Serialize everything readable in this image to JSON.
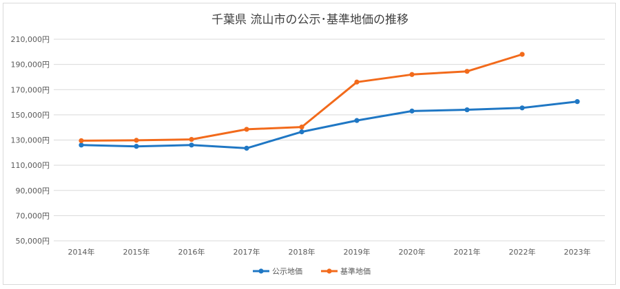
{
  "chart_data": {
    "type": "line",
    "title": "千葉県 流山市の公示･基準地価の推移",
    "categories": [
      "2014年",
      "2015年",
      "2016年",
      "2017年",
      "2018年",
      "2019年",
      "2020年",
      "2021年",
      "2022年",
      "2023年"
    ],
    "series": [
      {
        "name": "公示地価",
        "color": "#1f77c4",
        "values": [
          126000,
          125000,
          126000,
          123500,
          136500,
          145500,
          153000,
          154000,
          155500,
          160500
        ]
      },
      {
        "name": "基準地価",
        "color": "#f26a1b",
        "values": [
          129500,
          129800,
          130500,
          138500,
          140300,
          176000,
          182000,
          184500,
          198000,
          null
        ]
      }
    ],
    "ylim": [
      50000,
      210000
    ],
    "yticks": [
      50000,
      70000,
      90000,
      110000,
      130000,
      150000,
      170000,
      190000,
      210000
    ],
    "ytick_labels": [
      "50,000円",
      "70,000円",
      "90,000円",
      "110,000円",
      "130,000円",
      "150,000円",
      "170,000円",
      "190,000円",
      "210,000円"
    ],
    "grid": true,
    "legend_position": "bottom"
  }
}
